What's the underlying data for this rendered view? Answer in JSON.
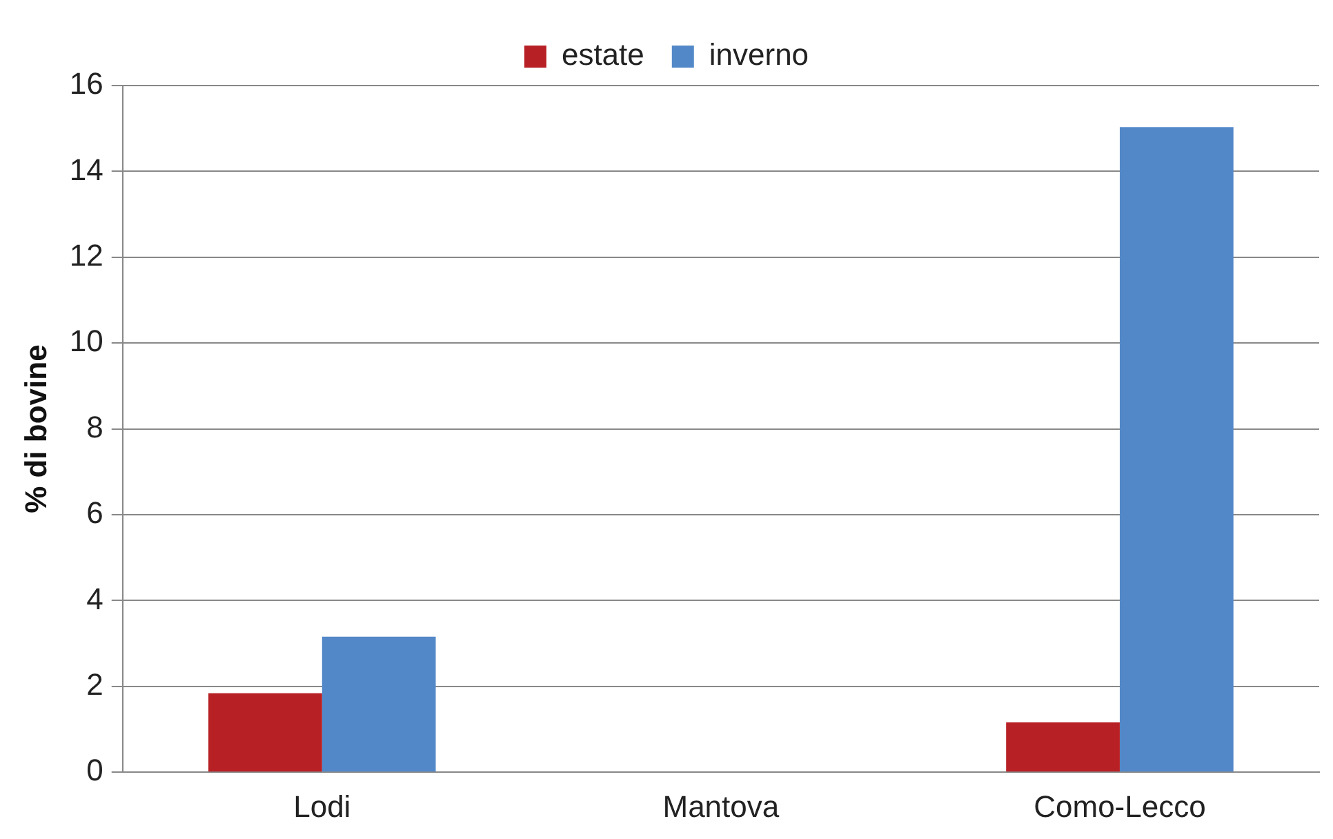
{
  "chart_data": {
    "type": "bar",
    "ylabel": "% di bovine",
    "categories": [
      "Lodi",
      "Mantova",
      "Como-Lecco"
    ],
    "series": [
      {
        "name": "estate",
        "color": "#b72025",
        "values": [
          1.84,
          0,
          1.16
        ]
      },
      {
        "name": "inverno",
        "color": "#5388c8",
        "values": [
          3.16,
          0,
          15.03
        ]
      }
    ],
    "ylim": [
      0,
      16
    ],
    "yticks": [
      0,
      2,
      4,
      6,
      8,
      10,
      12,
      14,
      16
    ],
    "grid": "y",
    "legend": "top"
  }
}
